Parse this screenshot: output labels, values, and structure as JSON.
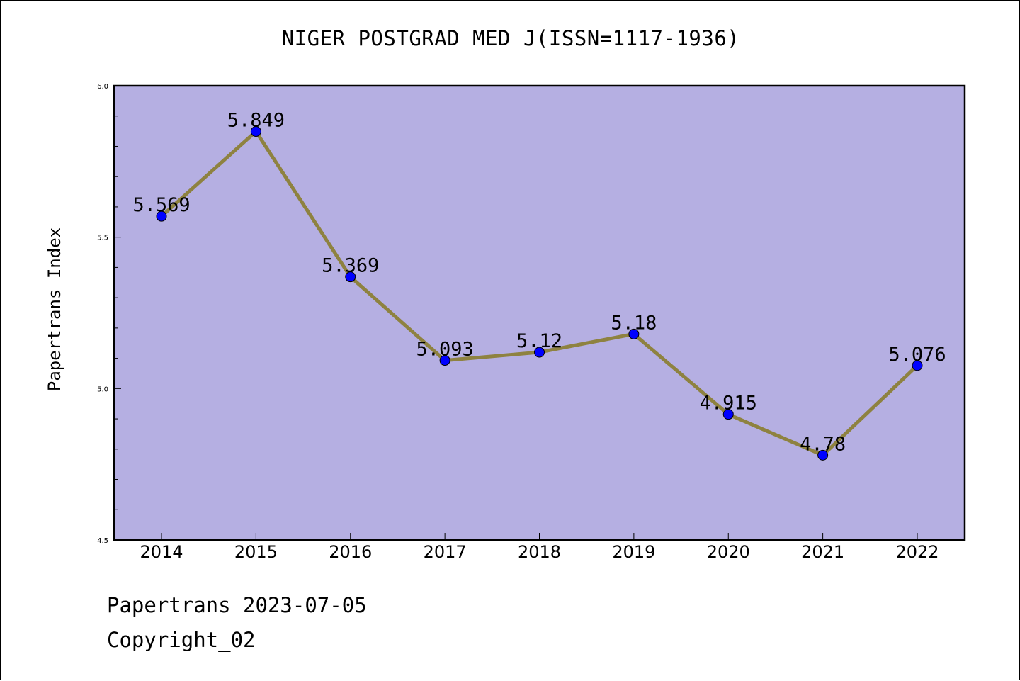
{
  "chart_data": {
    "type": "line",
    "title": "NIGER POSTGRAD MED J(ISSN=1117-1936)",
    "xlabel": "",
    "ylabel": "Papertrans Index",
    "categories": [
      "2014",
      "2015",
      "2016",
      "2017",
      "2018",
      "2019",
      "2020",
      "2021",
      "2022"
    ],
    "series": [
      {
        "values": [
          5.569,
          5.849,
          5.369,
          5.093,
          5.12,
          5.18,
          4.915,
          4.78,
          5.076
        ],
        "labels": [
          "5.569",
          "5.849",
          "5.369",
          "5.093",
          "5.12",
          "5.18",
          "4.915",
          "4.78",
          "5.076"
        ]
      }
    ],
    "ylim": [
      4.5,
      6.0
    ],
    "y_ticks": [
      "4.5",
      "5.0",
      "5.5",
      "6.0"
    ],
    "grid": false,
    "colors": {
      "plot_background": "#b5afe2",
      "line": "#8e8240",
      "marker": "#0000ff"
    }
  },
  "footer": {
    "line1": "Papertrans 2023-07-05",
    "line2": "Copyright_02"
  }
}
